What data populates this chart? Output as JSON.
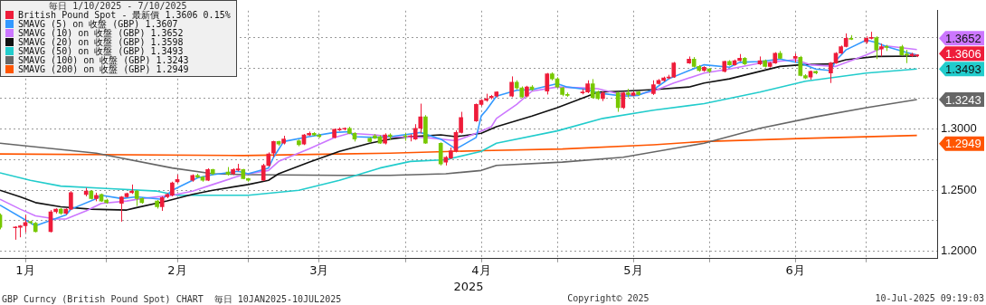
{
  "chart_data": {
    "type": "candlestick",
    "xlabel": "2025",
    "legend_title": "毎日 1/10/2025 - 7/10/2025",
    "legend": "top left",
    "grid": true,
    "xlim": [
      "2025-01-10",
      "2025-07-14"
    ],
    "xticks": [
      {
        "value": "2025-01-15",
        "label": "1月"
      },
      {
        "value": "2025-01-31",
        "label": null
      },
      {
        "value": "2025-02-14",
        "label": "2月"
      },
      {
        "value": "2025-02-28",
        "label": null
      },
      {
        "value": "2025-03-14",
        "label": "3月"
      },
      {
        "value": "2025-03-31",
        "label": null
      },
      {
        "value": "2025-04-15",
        "label": "4月"
      },
      {
        "value": "2025-04-30",
        "label": null
      },
      {
        "value": "2025-05-15",
        "label": "5月"
      },
      {
        "value": "2025-05-30",
        "label": null
      },
      {
        "value": "2025-06-16",
        "label": "6月"
      },
      {
        "value": "2025-06-30",
        "label": null
      }
    ],
    "ylim": [
      1.194,
      1.397
    ],
    "yticks": [
      {
        "value": 1.2,
        "label": "1.2000"
      },
      {
        "value": 1.225,
        "label": null
      },
      {
        "value": 1.25,
        "label": "1.2500"
      },
      {
        "value": 1.275,
        "label": null
      },
      {
        "value": 1.3,
        "label": "1.3000"
      },
      {
        "value": 1.325,
        "label": null
      },
      {
        "value": 1.35,
        "label": null
      },
      {
        "value": 1.375,
        "label": null
      }
    ],
    "series": [
      {
        "type": "candlestick",
        "name": "British Pound Spot - 最新價 1.3606 0.15%",
        "color": "#ee1c3a",
        "x": [
          "2025-01-10",
          "2025-01-13",
          "2025-01-14",
          "2025-01-15",
          "2025-01-16",
          "2025-01-17",
          "2025-01-20",
          "2025-01-21",
          "2025-01-22",
          "2025-01-23",
          "2025-01-24",
          "2025-01-27",
          "2025-01-28",
          "2025-01-29",
          "2025-01-30",
          "2025-01-31",
          "2025-02-03",
          "2025-02-04",
          "2025-02-05",
          "2025-02-06",
          "2025-02-07",
          "2025-02-10",
          "2025-02-11",
          "2025-02-12",
          "2025-02-13",
          "2025-02-14",
          "2025-02-17",
          "2025-02-18",
          "2025-02-19",
          "2025-02-20",
          "2025-02-21",
          "2025-02-24",
          "2025-02-25",
          "2025-02-26",
          "2025-02-27",
          "2025-02-28",
          "2025-03-03",
          "2025-03-04",
          "2025-03-05",
          "2025-03-06",
          "2025-03-07",
          "2025-03-10",
          "2025-03-11",
          "2025-03-12",
          "2025-03-13",
          "2025-03-14",
          "2025-03-17",
          "2025-03-18",
          "2025-03-19",
          "2025-03-20",
          "2025-03-21",
          "2025-03-24",
          "2025-03-25",
          "2025-03-26",
          "2025-03-27",
          "2025-03-28",
          "2025-03-31",
          "2025-04-01",
          "2025-04-02",
          "2025-04-03",
          "2025-04-04",
          "2025-04-07",
          "2025-04-08",
          "2025-04-09",
          "2025-04-10",
          "2025-04-11",
          "2025-04-14",
          "2025-04-15",
          "2025-04-16",
          "2025-04-17",
          "2025-04-18",
          "2025-04-21",
          "2025-04-22",
          "2025-04-23",
          "2025-04-24",
          "2025-04-25",
          "2025-04-28",
          "2025-04-29",
          "2025-04-30",
          "2025-05-01",
          "2025-05-02",
          "2025-05-05",
          "2025-05-06",
          "2025-05-07",
          "2025-05-08",
          "2025-05-09",
          "2025-05-12",
          "2025-05-13",
          "2025-05-14",
          "2025-05-15",
          "2025-05-16",
          "2025-05-19",
          "2025-05-20",
          "2025-05-21",
          "2025-05-22",
          "2025-05-23",
          "2025-05-26",
          "2025-05-27",
          "2025-05-28",
          "2025-05-29",
          "2025-05-30",
          "2025-06-02",
          "2025-06-03",
          "2025-06-04",
          "2025-06-05",
          "2025-06-06",
          "2025-06-09",
          "2025-06-10",
          "2025-06-11",
          "2025-06-12",
          "2025-06-13",
          "2025-06-16",
          "2025-06-17",
          "2025-06-18",
          "2025-06-19",
          "2025-06-20",
          "2025-06-23",
          "2025-06-24",
          "2025-06-25",
          "2025-06-26",
          "2025-06-27",
          "2025-06-30",
          "2025-07-01",
          "2025-07-02",
          "2025-07-03",
          "2025-07-04",
          "2025-07-07",
          "2025-07-08",
          "2025-07-09",
          "2025-07-10"
        ],
        "colors": [
          "#77c800",
          "#ee1c3a",
          "#ee1c3a",
          "#ee1c3a",
          "#77c800",
          "#77c800",
          "#ee1c3a",
          "#ee1c3a",
          "#77c800",
          "#ee1c3a",
          "#ee1c3a",
          "#ee1c3a",
          "#77c800",
          "#ee1c3a",
          "#77c800",
          "#77c800",
          "#ee1c3a",
          "#ee1c3a",
          "#ee1c3a",
          "#77c800",
          "#77c800",
          "#77c800",
          "#ee1c3a",
          "#ee1c3a",
          "#ee1c3a",
          "#ee1c3a",
          "#ee1c3a",
          "#77c800",
          "#77c800",
          "#ee1c3a",
          "#77c800",
          "#77c800",
          "#ee1c3a",
          "#ee1c3a",
          "#77c800",
          "#77c800",
          "#ee1c3a",
          "#ee1c3a",
          "#ee1c3a",
          "#77c800",
          "#ee1c3a",
          "#77c800",
          "#ee1c3a",
          "#ee1c3a",
          "#77c800",
          "#77c800",
          "#ee1c3a",
          "#ee1c3a",
          "#ee1c3a",
          "#77c800",
          "#77c800",
          "#77c800",
          "#77c800",
          "#77c800",
          "#ee1c3a",
          "#77c800",
          "#77c800",
          "#ee1c3a",
          "#ee1c3a",
          "#ee1c3a",
          "#77c800",
          "#77c800",
          "#ee1c3a",
          "#ee1c3a",
          "#ee1c3a",
          "#ee1c3a",
          "#ee1c3a",
          "#ee1c3a",
          "#ee1c3a",
          "#ee1c3a",
          "#ee1c3a",
          "#ee1c3a",
          "#77c800",
          "#77c800",
          "#ee1c3a",
          "#77c800",
          "#ee1c3a",
          "#77c800",
          "#77c800",
          "#77c800",
          "#77c800",
          "#ee1c3a",
          "#ee1c3a",
          "#77c800",
          "#77c800",
          "#ee1c3a",
          "#77c800",
          "#ee1c3a",
          "#77c800",
          "#ee1c3a",
          "#77c800",
          "#ee1c3a",
          "#ee1c3a",
          "#ee1c3a",
          "#ee1c3a",
          "#ee1c3a",
          "#ee1c3a",
          "#77c800",
          "#77c800",
          "#ee1c3a",
          "#77c800",
          "#ee1c3a",
          "#77c800",
          "#ee1c3a",
          "#ee1c3a",
          "#77c800",
          "#ee1c3a",
          "#77c800",
          "#ee1c3a",
          "#ee1c3a",
          "#77c800",
          "#ee1c3a",
          "#77c800",
          "#77c800",
          "#ee1c3a",
          "#77c800",
          "#ee1c3a",
          "#ee1c3a",
          "#ee1c3a",
          "#ee1c3a",
          "#77c800",
          "#ee1c3a",
          "#ee1c3a",
          "#77c800",
          "#ee1c3a",
          "#77c800",
          "#77c800",
          "#77c800",
          "#ee1c3a",
          "#ee1c3a"
        ],
        "ohlc": [
          [
            1.2297,
            1.231,
            1.218,
            1.2196
          ],
          [
            1.2192,
            1.2205,
            1.2095,
            1.2199
          ],
          [
            1.2196,
            1.2215,
            1.2115,
            1.2209
          ],
          [
            1.2209,
            1.2297,
            1.2155,
            1.2236
          ],
          [
            1.224,
            1.225,
            1.222,
            1.2236
          ],
          [
            1.223,
            1.224,
            1.2155,
            1.2162
          ],
          [
            1.2162,
            1.2338,
            1.2155,
            1.2324
          ],
          [
            1.2324,
            1.2352,
            1.231,
            1.2345
          ],
          [
            1.2345,
            1.2355,
            1.23,
            1.2311
          ],
          [
            1.2311,
            1.2352,
            1.23,
            1.2345
          ],
          [
            1.2345,
            1.2493,
            1.2338,
            1.248
          ],
          [
            1.2466,
            1.252,
            1.245,
            1.2493
          ],
          [
            1.2493,
            1.25,
            1.2425,
            1.2432
          ],
          [
            1.2432,
            1.248,
            1.241,
            1.2459
          ],
          [
            1.2466,
            1.2473,
            1.2405,
            1.2412
          ],
          [
            1.2419,
            1.243,
            1.239,
            1.2399
          ],
          [
            1.2392,
            1.2452,
            1.2243,
            1.2446
          ],
          [
            1.2446,
            1.248,
            1.244,
            1.2473
          ],
          [
            1.248,
            1.2547,
            1.247,
            1.2493
          ],
          [
            1.2493,
            1.25,
            1.2372,
            1.2432
          ],
          [
            1.2432,
            1.244,
            1.239,
            1.2399
          ],
          [
            1.2412,
            1.242,
            1.235,
            1.2365
          ],
          [
            1.2365,
            1.245,
            1.2331,
            1.2439
          ],
          [
            1.2446,
            1.2475,
            1.2435,
            1.2466
          ],
          [
            1.2459,
            1.257,
            1.245,
            1.2561
          ],
          [
            1.2568,
            1.2628,
            1.256,
            1.2588
          ],
          [
            1.2581,
            1.263,
            1.257,
            1.2622
          ],
          [
            1.2622,
            1.2635,
            1.26,
            1.2608
          ],
          [
            1.2608,
            1.2615,
            1.257,
            1.2581
          ],
          [
            1.2581,
            1.268,
            1.2575,
            1.2669
          ],
          [
            1.2669,
            1.2675,
            1.2625,
            1.2635
          ],
          [
            1.265,
            1.269,
            1.262,
            1.263
          ],
          [
            1.2635,
            1.268,
            1.2625,
            1.2669
          ],
          [
            1.2665,
            1.2716,
            1.2655,
            1.2676
          ],
          [
            1.2669,
            1.2675,
            1.259,
            1.2595
          ],
          [
            1.2595,
            1.26,
            1.257,
            1.2581
          ],
          [
            1.2581,
            1.2716,
            1.2575,
            1.2703
          ],
          [
            1.2703,
            1.281,
            1.2695,
            1.2797
          ],
          [
            1.2804,
            1.2905,
            1.277,
            1.2899
          ],
          [
            1.2899,
            1.2905,
            1.2865,
            1.2878
          ],
          [
            1.2885,
            1.2946,
            1.2875,
            1.2919
          ],
          [
            1.2905,
            1.2915,
            1.286,
            1.2872
          ],
          [
            1.2878,
            1.296,
            1.287,
            1.2953
          ],
          [
            1.2953,
            1.298,
            1.2945,
            1.2966
          ],
          [
            1.2966,
            1.2975,
            1.2945,
            1.2953
          ],
          [
            1.2953,
            1.296,
            1.293,
            1.2939
          ],
          [
            1.2932,
            1.3005,
            1.2925,
            1.3
          ],
          [
            1.2993,
            1.3014,
            1.2985,
            1.3
          ],
          [
            1.3,
            1.3014,
            1.299,
            1.3007
          ],
          [
            1.3007,
            1.302,
            1.296,
            1.2966
          ],
          [
            1.2966,
            1.2975,
            1.2899,
            1.2919
          ],
          [
            1.2926,
            1.2935,
            1.289,
            1.2899
          ],
          [
            1.2946,
            1.296,
            1.292,
            1.2926
          ],
          [
            1.2939,
            1.295,
            1.288,
            1.2885
          ],
          [
            1.2885,
            1.2966,
            1.2875,
            1.2953
          ],
          [
            1.2953,
            1.2966,
            1.2912,
            1.2939
          ],
          [
            1.2946,
            1.297,
            1.2905,
            1.2939
          ],
          [
            1.2939,
            1.296,
            1.29,
            1.2946
          ],
          [
            1.2919,
            1.3041,
            1.2912,
            1.3007
          ],
          [
            1.3007,
            1.3209,
            1.2966,
            1.3101
          ],
          [
            1.3101,
            1.3115,
            1.288,
            1.2885
          ],
          [
            1.2885,
            1.2892,
            1.2703,
            1.2716
          ],
          [
            1.273,
            1.278,
            1.2703,
            1.277
          ],
          [
            1.2764,
            1.285,
            1.2755,
            1.2824
          ],
          [
            1.2818,
            1.299,
            1.281,
            1.2973
          ],
          [
            1.2973,
            1.3142,
            1.2965,
            1.3095
          ],
          [
            1.3068,
            1.321,
            1.306,
            1.3203
          ],
          [
            1.3203,
            1.3245,
            1.319,
            1.3236
          ],
          [
            1.3236,
            1.329,
            1.3225,
            1.325
          ],
          [
            1.3257,
            1.328,
            1.3245,
            1.327
          ],
          [
            1.327,
            1.331,
            1.326,
            1.3304
          ],
          [
            1.327,
            1.3432,
            1.3262,
            1.3385
          ],
          [
            1.3385,
            1.34,
            1.3325,
            1.3338
          ],
          [
            1.3338,
            1.335,
            1.3255,
            1.3264
          ],
          [
            1.327,
            1.3355,
            1.326,
            1.3345
          ],
          [
            1.3345,
            1.336,
            1.3315,
            1.3324
          ],
          [
            1.3311,
            1.346,
            1.3284,
            1.3453
          ],
          [
            1.3453,
            1.3465,
            1.34,
            1.3412
          ],
          [
            1.3412,
            1.3425,
            1.3338,
            1.3345
          ],
          [
            1.3338,
            1.3345,
            1.327,
            1.3284
          ],
          [
            1.3284,
            1.33,
            1.3265,
            1.3277
          ],
          [
            1.3297,
            1.333,
            1.3285,
            1.3304
          ],
          [
            1.3304,
            1.34,
            1.3295,
            1.3372
          ],
          [
            1.3372,
            1.341,
            1.325,
            1.3257
          ],
          [
            1.3304,
            1.3315,
            1.324,
            1.325
          ],
          [
            1.325,
            1.331,
            1.323,
            1.3297
          ],
          [
            1.3297,
            1.3305,
            1.3142,
            1.3176
          ],
          [
            1.3176,
            1.3305,
            1.3165,
            1.3297
          ],
          [
            1.3297,
            1.333,
            1.326,
            1.3284
          ],
          [
            1.3277,
            1.331,
            1.327,
            1.3297
          ],
          [
            1.3304,
            1.3315,
            1.3275,
            1.3284
          ],
          [
            1.3291,
            1.34,
            1.328,
            1.3365
          ],
          [
            1.3372,
            1.341,
            1.3365,
            1.3399
          ],
          [
            1.3399,
            1.343,
            1.339,
            1.3419
          ],
          [
            1.3419,
            1.3445,
            1.341,
            1.3426
          ],
          [
            1.3426,
            1.355,
            1.342,
            1.3541
          ],
          [
            1.3541,
            1.3595,
            1.3535,
            1.3574
          ],
          [
            1.3574,
            1.359,
            1.3505,
            1.3514
          ],
          [
            1.3514,
            1.3525,
            1.347,
            1.348
          ],
          [
            1.348,
            1.3515,
            1.347,
            1.3507
          ],
          [
            1.3493,
            1.35,
            1.346,
            1.3473
          ],
          [
            1.3473,
            1.356,
            1.3465,
            1.3554
          ],
          [
            1.3554,
            1.3565,
            1.352,
            1.3527
          ],
          [
            1.3527,
            1.357,
            1.352,
            1.3561
          ],
          [
            1.3561,
            1.3615,
            1.3555,
            1.3581
          ],
          [
            1.3581,
            1.359,
            1.3525,
            1.3534
          ],
          [
            1.3534,
            1.3595,
            1.3525,
            1.3561
          ],
          [
            1.3561,
            1.357,
            1.3505,
            1.3514
          ],
          [
            1.3514,
            1.355,
            1.3505,
            1.3541
          ],
          [
            1.3541,
            1.363,
            1.3535,
            1.3622
          ],
          [
            1.3622,
            1.364,
            1.3575,
            1.3581
          ],
          [
            1.3581,
            1.362,
            1.3545,
            1.3595
          ],
          [
            1.3588,
            1.36,
            1.3432,
            1.3439
          ],
          [
            1.3439,
            1.345,
            1.341,
            1.3419
          ],
          [
            1.3426,
            1.348,
            1.3405,
            1.3473
          ],
          [
            1.3473,
            1.348,
            1.345,
            1.3459
          ],
          [
            1.3459,
            1.355,
            1.3378,
            1.3541
          ],
          [
            1.3541,
            1.363,
            1.3535,
            1.3622
          ],
          [
            1.3622,
            1.3685,
            1.3615,
            1.3676
          ],
          [
            1.3676,
            1.3784,
            1.367,
            1.3743
          ],
          [
            1.3743,
            1.377,
            1.373,
            1.3736
          ],
          [
            1.3716,
            1.376,
            1.37,
            1.3743
          ],
          [
            1.3743,
            1.3797,
            1.3735,
            1.375
          ],
          [
            1.375,
            1.376,
            1.3574,
            1.3649
          ],
          [
            1.3656,
            1.37,
            1.3595,
            1.3676
          ],
          [
            1.3676,
            1.369,
            1.364,
            1.3669
          ],
          [
            1.3676,
            1.369,
            1.36,
            1.3608
          ],
          [
            1.3612,
            1.3649,
            1.3541,
            1.3608
          ],
          [
            1.3601,
            1.3625,
            1.359,
            1.3615
          ],
          [
            1.3601,
            1.3612,
            1.359,
            1.3606
          ]
        ]
      },
      {
        "type": "line",
        "name": "SMAVG (5) on 收盤 (GBP) 1.3607",
        "color": "#3399ff",
        "x": [
          "2025-01-10",
          "2025-01-17",
          "2025-01-23",
          "2025-01-24",
          "2025-01-29",
          "2025-01-30",
          "2025-02-03",
          "2025-02-06",
          "2025-02-11",
          "2025-02-13",
          "2025-02-18",
          "2025-02-21",
          "2025-02-26",
          "2025-02-28",
          "2025-03-04",
          "2025-03-05",
          "2025-03-07",
          "2025-03-12",
          "2025-03-17",
          "2025-03-20",
          "2025-03-21",
          "2025-03-25",
          "2025-03-28",
          "2025-04-02",
          "2025-04-03",
          "2025-04-07",
          "2025-04-10",
          "2025-04-14",
          "2025-04-15",
          "2025-04-16",
          "2025-04-18",
          "2025-04-22",
          "2025-04-25",
          "2025-04-30",
          "2025-05-02",
          "2025-05-06",
          "2025-05-08",
          "2025-05-13",
          "2025-05-16",
          "2025-05-19",
          "2025-05-22",
          "2025-05-26",
          "2025-05-29",
          "2025-06-03",
          "2025-06-05",
          "2025-06-09",
          "2025-06-13",
          "2025-06-17",
          "2025-06-20",
          "2025-06-23",
          "2025-06-24",
          "2025-06-26",
          "2025-06-30",
          "2025-07-02",
          "2025-07-04",
          "2025-07-08",
          "2025-07-10"
        ],
        "values": [
          1.2378,
          1.2209,
          1.2297,
          1.2345,
          1.2432,
          1.2459,
          1.2432,
          1.2446,
          1.2426,
          1.25,
          1.2601,
          1.2628,
          1.2655,
          1.2635,
          1.2682,
          1.277,
          1.2899,
          1.2939,
          1.2973,
          1.298,
          1.2939,
          1.2932,
          1.2939,
          1.2966,
          1.2973,
          1.2919,
          1.2838,
          1.2932,
          1.3108,
          1.3155,
          1.327,
          1.3318,
          1.3324,
          1.3372,
          1.3345,
          1.3324,
          1.3297,
          1.327,
          1.3277,
          1.3324,
          1.3412,
          1.348,
          1.3527,
          1.3507,
          1.3547,
          1.3554,
          1.3574,
          1.3541,
          1.3493,
          1.348,
          1.3561,
          1.3649,
          1.373,
          1.3709,
          1.3676,
          1.3628,
          1.3607
        ]
      },
      {
        "type": "line",
        "name": "SMAVG (10) on 收盤 (GBP) 1.3652",
        "color": "#cc77ff",
        "x": [
          "2025-01-10",
          "2025-01-14",
          "2025-01-17",
          "2025-01-21",
          "2025-01-23",
          "2025-01-27",
          "2025-01-30",
          "2025-02-04",
          "2025-02-07",
          "2025-02-13",
          "2025-02-17",
          "2025-02-21",
          "2025-02-26",
          "2025-02-28",
          "2025-03-04",
          "2025-03-06",
          "2025-03-12",
          "2025-03-17",
          "2025-03-20",
          "2025-03-25",
          "2025-03-28",
          "2025-04-04",
          "2025-04-10",
          "2025-04-14",
          "2025-04-17",
          "2025-04-18",
          "2025-04-22",
          "2025-04-25",
          "2025-04-30",
          "2025-05-05",
          "2025-05-08",
          "2025-05-12",
          "2025-05-15",
          "2025-05-19",
          "2025-05-23",
          "2025-05-29",
          "2025-06-03",
          "2025-06-09",
          "2025-06-16",
          "2025-06-19",
          "2025-06-24",
          "2025-06-30",
          "2025-07-04",
          "2025-07-10"
        ],
        "values": [
          1.2426,
          1.2345,
          1.2291,
          1.2264,
          1.2264,
          1.2331,
          1.2392,
          1.2412,
          1.2432,
          1.2459,
          1.2493,
          1.2547,
          1.2615,
          1.2635,
          1.2662,
          1.2736,
          1.2838,
          1.2932,
          1.2966,
          1.2953,
          1.2939,
          1.2932,
          1.2905,
          1.2966,
          1.302,
          1.3088,
          1.3203,
          1.3311,
          1.3345,
          1.3338,
          1.3331,
          1.3291,
          1.3277,
          1.3311,
          1.3378,
          1.3459,
          1.3493,
          1.3541,
          1.3568,
          1.3527,
          1.3514,
          1.3608,
          1.3682,
          1.3652
        ]
      },
      {
        "type": "line",
        "name": "SMAVG (20) on 收盤 (GBP) 1.3598",
        "color": "#111111",
        "x": [
          "2025-01-10",
          "2025-01-14",
          "2025-01-17",
          "2025-01-22",
          "2025-01-28",
          "2025-02-04",
          "2025-02-06",
          "2025-02-12",
          "2025-02-17",
          "2025-02-21",
          "2025-02-28",
          "2025-03-04",
          "2025-03-06",
          "2025-03-12",
          "2025-03-18",
          "2025-03-24",
          "2025-03-28",
          "2025-04-01",
          "2025-04-07",
          "2025-04-10",
          "2025-04-15",
          "2025-04-18",
          "2025-04-25",
          "2025-04-30",
          "2025-05-06",
          "2025-05-08",
          "2025-05-13",
          "2025-05-19",
          "2025-05-26",
          "2025-05-29",
          "2025-06-03",
          "2025-06-09",
          "2025-06-13",
          "2025-06-17",
          "2025-06-23",
          "2025-06-26",
          "2025-07-02",
          "2025-07-10"
        ],
        "values": [
          1.25,
          1.2446,
          1.2399,
          1.2365,
          1.2345,
          1.2338,
          1.2358,
          1.2412,
          1.2466,
          1.25,
          1.2547,
          1.2581,
          1.2635,
          1.273,
          1.2818,
          1.2885,
          1.2919,
          1.2939,
          1.2953,
          1.2939,
          1.2966,
          1.302,
          1.3108,
          1.3176,
          1.327,
          1.3304,
          1.3311,
          1.3324,
          1.3345,
          1.3378,
          1.3412,
          1.3473,
          1.3514,
          1.3527,
          1.3534,
          1.3568,
          1.3595,
          1.3598
        ]
      },
      {
        "type": "line",
        "name": "SMAVG (50) on 收盤 (GBP) 1.3493",
        "color": "#22cccc",
        "x": [
          "2025-01-10",
          "2025-01-16",
          "2025-01-22",
          "2025-01-31",
          "2025-02-10",
          "2025-02-14",
          "2025-02-21",
          "2025-02-28",
          "2025-03-10",
          "2025-03-18",
          "2025-03-26",
          "2025-04-01",
          "2025-04-08",
          "2025-04-15",
          "2025-04-18",
          "2025-04-30",
          "2025-05-09",
          "2025-05-19",
          "2025-05-29",
          "2025-06-09",
          "2025-06-18",
          "2025-06-30",
          "2025-07-10"
        ],
        "values": [
          1.2642,
          1.2581,
          1.2534,
          1.2514,
          1.2493,
          1.2459,
          1.2459,
          1.2459,
          1.25,
          1.2581,
          1.2682,
          1.2736,
          1.275,
          1.2818,
          1.2885,
          1.2986,
          1.3088,
          1.3155,
          1.3209,
          1.3304,
          1.3392,
          1.3459,
          1.3493
        ]
      },
      {
        "type": "line",
        "name": "SMAVG (100) on 收盤 (GBP) 1.3243",
        "color": "#666666",
        "x": [
          "2025-01-10",
          "2025-01-29",
          "2025-02-13",
          "2025-02-21",
          "2025-02-28",
          "2025-03-18",
          "2025-03-28",
          "2025-04-08",
          "2025-04-15",
          "2025-04-18",
          "2025-05-01",
          "2025-05-13",
          "2025-05-29",
          "2025-06-09",
          "2025-06-20",
          "2025-06-30",
          "2025-07-10"
        ],
        "values": [
          1.2885,
          1.2804,
          1.2682,
          1.2635,
          1.2628,
          1.2622,
          1.2622,
          1.2635,
          1.2662,
          1.2703,
          1.273,
          1.277,
          1.2885,
          1.3007,
          1.3101,
          1.3176,
          1.3243
        ]
      },
      {
        "type": "line",
        "name": "SMAVG (200) on 收盤 (GBP) 1.2949",
        "color": "#ff5500",
        "x": [
          "2025-01-10",
          "2025-02-27",
          "2025-03-18",
          "2025-03-28",
          "2025-04-15",
          "2025-05-01",
          "2025-05-19",
          "2025-05-29",
          "2025-06-18",
          "2025-07-10"
        ],
        "values": [
          1.2797,
          1.2784,
          1.2797,
          1.2804,
          1.2824,
          1.2838,
          1.2872,
          1.2899,
          1.2925,
          1.2949
        ]
      }
    ],
    "annotations": [
      {
        "text": "1.3652",
        "x": "2025-07-10",
        "y": 1.3652
      },
      {
        "text": "1.3606",
        "x": "2025-07-10",
        "y": 1.3606
      },
      {
        "text": "1.3493",
        "x": "2025-07-10",
        "y": 1.3493
      },
      {
        "text": "1.3243",
        "x": "2025-07-10",
        "y": 1.3243
      },
      {
        "text": "1.2949",
        "x": "2025-07-10",
        "y": 1.2949
      },
      "GBP Curncy (British Pound Spot) CHART  毎日 10JAN2025-10JUL2025",
      "Copyright© 2025",
      "10-Jul-2025 09:19:03"
    ]
  }
}
